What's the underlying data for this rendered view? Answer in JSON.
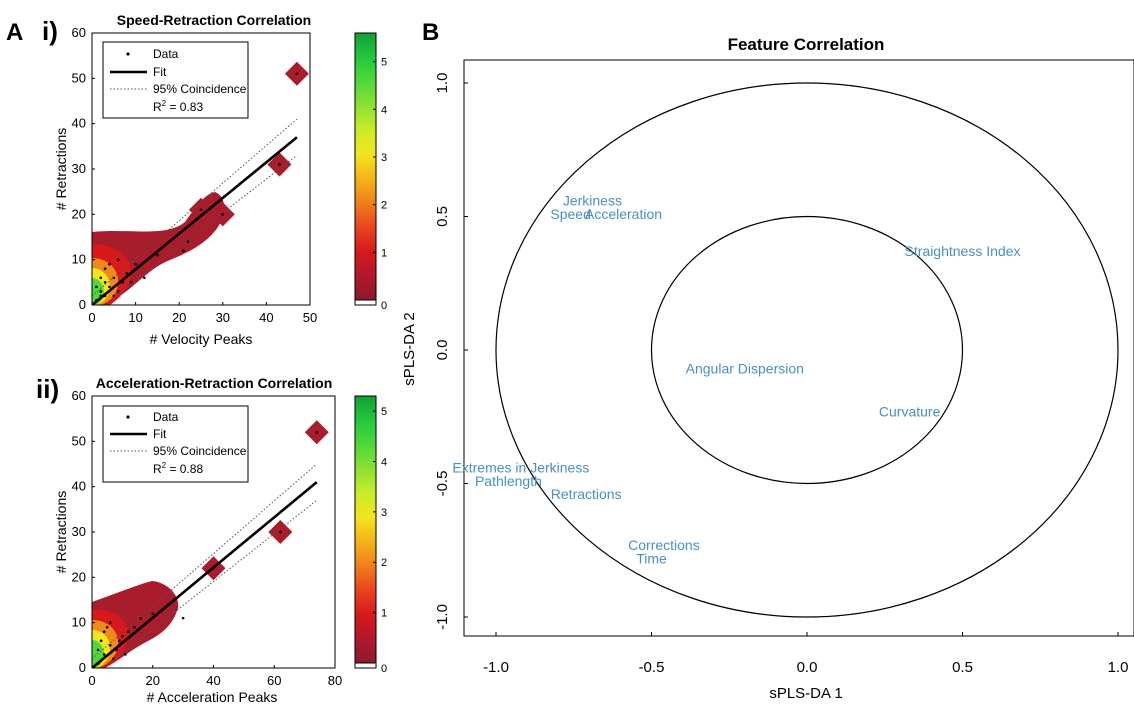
{
  "panels": {
    "A": "A",
    "B": "B",
    "i": "i)",
    "ii": "ii)"
  },
  "colorbar": {
    "colors": [
      "#8b1a2b",
      "#b2182b",
      "#d7191c",
      "#e8451e",
      "#f07f1a",
      "#f4b41a",
      "#f2e51c",
      "#c9ec2a",
      "#8de032",
      "#4fd83b",
      "#22c83d",
      "#12a033"
    ]
  },
  "chart_data": [
    {
      "type": "scatter",
      "title": "Speed-Retraction Correlation",
      "xlabel": "# Velocity Peaks",
      "ylabel": "# Retractions",
      "xlim": [
        0,
        50
      ],
      "ylim": [
        0,
        60
      ],
      "xticks": [
        "0",
        "10",
        "20",
        "30",
        "40",
        "50"
      ],
      "yticks": [
        "0",
        "10",
        "20",
        "30",
        "40",
        "50",
        "60"
      ],
      "legend": {
        "position": "top-left",
        "entries": [
          "Data",
          "Fit",
          "95% Coincidence"
        ],
        "r2_label": "R",
        "r2_sup": "2",
        "r2_value": " = 0.83"
      },
      "colorbar": {
        "range": [
          0,
          5.6
        ],
        "ticks": [
          "0",
          "1",
          "2",
          "3",
          "4",
          "5"
        ]
      },
      "fit": {
        "x": [
          0,
          47
        ],
        "y": [
          0,
          37
        ]
      },
      "ci_upper": {
        "x": [
          0,
          47
        ],
        "y": [
          2,
          41
        ]
      },
      "ci_lower": {
        "x": [
          0,
          47
        ],
        "y": [
          -2,
          33
        ]
      },
      "points": [
        [
          1,
          1
        ],
        [
          2,
          3
        ],
        [
          3,
          2
        ],
        [
          4,
          4
        ],
        [
          5,
          6
        ],
        [
          6,
          3
        ],
        [
          7,
          5
        ],
        [
          2,
          6
        ],
        [
          3,
          8
        ],
        [
          1,
          4
        ],
        [
          8,
          7
        ],
        [
          9,
          5
        ],
        [
          10,
          9
        ],
        [
          12,
          6
        ],
        [
          15,
          11
        ],
        [
          4,
          9
        ],
        [
          6,
          10
        ],
        [
          2,
          2
        ],
        [
          3,
          5
        ],
        [
          5,
          2
        ],
        [
          21,
          12
        ],
        [
          22,
          14
        ],
        [
          25,
          21
        ],
        [
          30,
          20
        ],
        [
          43,
          31
        ],
        [
          47,
          51
        ]
      ]
    },
    {
      "type": "scatter",
      "title": "Acceleration-Retraction Correlation",
      "xlabel": "# Acceleration Peaks",
      "ylabel": "# Retractions",
      "xlim": [
        0,
        80
      ],
      "ylim": [
        0,
        60
      ],
      "xticks": [
        "0",
        "20",
        "40",
        "60",
        "80"
      ],
      "yticks": [
        "0",
        "10",
        "20",
        "30",
        "40",
        "50",
        "60"
      ],
      "legend": {
        "position": "top-left",
        "entries": [
          "Data",
          "Fit",
          "95% Coincidence"
        ],
        "r2_label": "R",
        "r2_sup": "2",
        "r2_value": " = 0.88"
      },
      "colorbar": {
        "range": [
          0,
          5.3
        ],
        "ticks": [
          "0",
          "1",
          "2",
          "3",
          "4",
          "5"
        ]
      },
      "fit": {
        "x": [
          0,
          74
        ],
        "y": [
          0,
          41
        ]
      },
      "ci_upper": {
        "x": [
          0,
          74
        ],
        "y": [
          2,
          45
        ]
      },
      "ci_lower": {
        "x": [
          0,
          74
        ],
        "y": [
          -2,
          37
        ]
      },
      "points": [
        [
          2,
          1
        ],
        [
          4,
          3
        ],
        [
          6,
          5
        ],
        [
          3,
          6
        ],
        [
          8,
          4
        ],
        [
          10,
          7
        ],
        [
          12,
          8
        ],
        [
          5,
          9
        ],
        [
          7,
          2
        ],
        [
          9,
          6
        ],
        [
          14,
          9
        ],
        [
          16,
          11
        ],
        [
          20,
          12
        ],
        [
          25,
          14
        ],
        [
          30,
          11
        ],
        [
          2,
          4
        ],
        [
          4,
          8
        ],
        [
          6,
          10
        ],
        [
          11,
          3
        ],
        [
          40,
          22
        ],
        [
          62,
          30
        ],
        [
          74,
          52
        ]
      ]
    },
    {
      "type": "scatter",
      "title": "Feature Correlation",
      "xlabel": "sPLS-DA 1",
      "ylabel": "sPLS-DA 2",
      "xlim": [
        -1.0,
        1.0
      ],
      "ylim": [
        -1.0,
        1.0
      ],
      "xticks": [
        "-1.0",
        "-0.5",
        "0.0",
        "0.5",
        "1.0"
      ],
      "yticks": [
        "-1.0",
        "-0.5",
        "0.0",
        "0.5",
        "1.0"
      ],
      "circle_radii": [
        1.0,
        0.5
      ],
      "label_color": "#4a8fc4",
      "labels": [
        {
          "text": "Jerkiness",
          "x": -0.69,
          "y": 0.56
        },
        {
          "text": "Speed",
          "x": -0.76,
          "y": 0.51
        },
        {
          "text": "Acceleration",
          "x": -0.59,
          "y": 0.51
        },
        {
          "text": "Straightness Index",
          "x": 0.5,
          "y": 0.37
        },
        {
          "text": "Angular Dispersion",
          "x": -0.2,
          "y": -0.07
        },
        {
          "text": "Curvature",
          "x": 0.33,
          "y": -0.23
        },
        {
          "text": "Extremes in Jerkiness",
          "x": -0.92,
          "y": -0.44
        },
        {
          "text": "Pathlength",
          "x": -0.96,
          "y": -0.49
        },
        {
          "text": "Retractions",
          "x": -0.71,
          "y": -0.54
        },
        {
          "text": "Corrections",
          "x": -0.46,
          "y": -0.73
        },
        {
          "text": "Time",
          "x": -0.5,
          "y": -0.78
        }
      ]
    }
  ]
}
